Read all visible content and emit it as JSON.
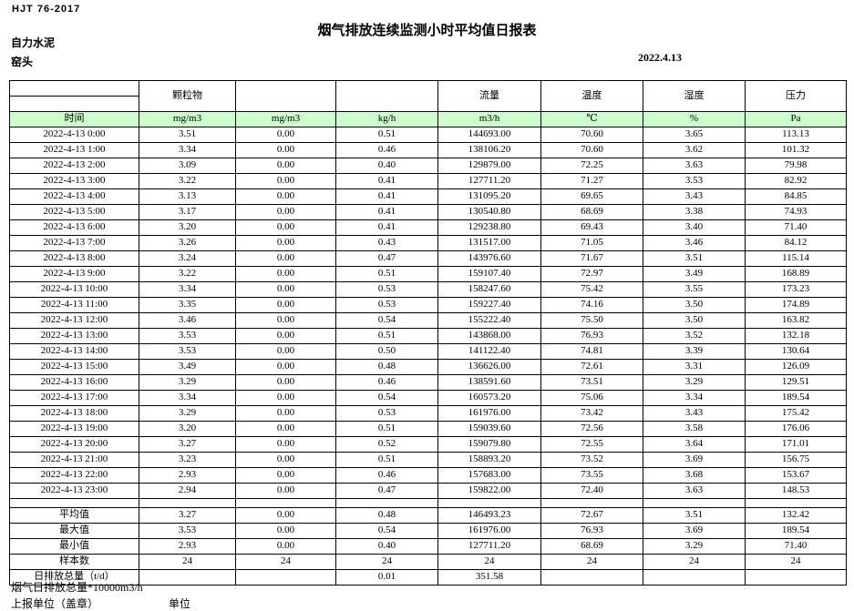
{
  "header": {
    "standard_code": "HJT 76-2017",
    "title": "烟气排放连续监测小时平均值日报表",
    "company": "自力水泥",
    "monitor_point": "窑头",
    "date": "2022.4.13"
  },
  "table": {
    "param_headers": [
      "",
      "颗粒物",
      "",
      "",
      "流量",
      "温度",
      "湿度",
      "压力"
    ],
    "unit_row": [
      "时间",
      "mg/m3",
      "mg/m3",
      "kg/h",
      "m3/h",
      "℃",
      "%",
      "Pa"
    ],
    "rows": [
      [
        "2022-4-13 0:00",
        "3.51",
        "0.00",
        "0.51",
        "144693.00",
        "70.60",
        "3.65",
        "113.13"
      ],
      [
        "2022-4-13 1:00",
        "3.34",
        "0.00",
        "0.46",
        "138106.20",
        "70.60",
        "3.62",
        "101.32"
      ],
      [
        "2022-4-13 2:00",
        "3.09",
        "0.00",
        "0.40",
        "129879.00",
        "72.25",
        "3.63",
        "79.98"
      ],
      [
        "2022-4-13 3:00",
        "3.22",
        "0.00",
        "0.41",
        "127711.20",
        "71.27",
        "3.53",
        "82.92"
      ],
      [
        "2022-4-13 4:00",
        "3.13",
        "0.00",
        "0.41",
        "131095.20",
        "69.65",
        "3.43",
        "84.85"
      ],
      [
        "2022-4-13 5:00",
        "3.17",
        "0.00",
        "0.41",
        "130540.80",
        "68.69",
        "3.38",
        "74.93"
      ],
      [
        "2022-4-13 6:00",
        "3.20",
        "0.00",
        "0.41",
        "129238.80",
        "69.43",
        "3.40",
        "71.40"
      ],
      [
        "2022-4-13 7:00",
        "3.26",
        "0.00",
        "0.43",
        "131517.00",
        "71.05",
        "3.46",
        "84.12"
      ],
      [
        "2022-4-13 8:00",
        "3.24",
        "0.00",
        "0.47",
        "143976.60",
        "71.67",
        "3.51",
        "115.14"
      ],
      [
        "2022-4-13 9:00",
        "3.22",
        "0.00",
        "0.51",
        "159107.40",
        "72.97",
        "3.49",
        "168.89"
      ],
      [
        "2022-4-13 10:00",
        "3.34",
        "0.00",
        "0.53",
        "158247.60",
        "75.42",
        "3.55",
        "173.23"
      ],
      [
        "2022-4-13 11:00",
        "3.35",
        "0.00",
        "0.53",
        "159227.40",
        "74.16",
        "3.50",
        "174.89"
      ],
      [
        "2022-4-13 12:00",
        "3.46",
        "0.00",
        "0.54",
        "155222.40",
        "75.50",
        "3.50",
        "163.82"
      ],
      [
        "2022-4-13 13:00",
        "3.53",
        "0.00",
        "0.51",
        "143868.00",
        "76.93",
        "3.52",
        "132.18"
      ],
      [
        "2022-4-13 14:00",
        "3.53",
        "0.00",
        "0.50",
        "141122.40",
        "74.81",
        "3.39",
        "130.64"
      ],
      [
        "2022-4-13 15:00",
        "3.49",
        "0.00",
        "0.48",
        "136626.00",
        "72.61",
        "3.31",
        "126.09"
      ],
      [
        "2022-4-13 16:00",
        "3.29",
        "0.00",
        "0.46",
        "138591.60",
        "73.51",
        "3.29",
        "129.51"
      ],
      [
        "2022-4-13 17:00",
        "3.34",
        "0.00",
        "0.54",
        "160573.20",
        "75.06",
        "3.34",
        "189.54"
      ],
      [
        "2022-4-13 18:00",
        "3.29",
        "0.00",
        "0.53",
        "161976.00",
        "73.42",
        "3.43",
        "175.42"
      ],
      [
        "2022-4-13 19:00",
        "3.20",
        "0.00",
        "0.51",
        "159039.60",
        "72.56",
        "3.58",
        "176.06"
      ],
      [
        "2022-4-13 20:00",
        "3.27",
        "0.00",
        "0.52",
        "159079.80",
        "72.55",
        "3.64",
        "171.01"
      ],
      [
        "2022-4-13 21:00",
        "3.23",
        "0.00",
        "0.51",
        "158893.20",
        "73.52",
        "3.69",
        "156.75"
      ],
      [
        "2022-4-13 22:00",
        "2.93",
        "0.00",
        "0.46",
        "157683.00",
        "73.55",
        "3.68",
        "153.67"
      ],
      [
        "2022-4-13 23:00",
        "2.94",
        "0.00",
        "0.47",
        "159822.00",
        "72.40",
        "3.63",
        "148.53"
      ]
    ],
    "summary_rows": [
      [
        "平均值",
        "3.27",
        "0.00",
        "0.48",
        "146493.23",
        "72.67",
        "3.51",
        "132.42"
      ],
      [
        "最大值",
        "3.53",
        "0.00",
        "0.54",
        "161976.00",
        "76.93",
        "3.69",
        "189.54"
      ],
      [
        "最小值",
        "2.93",
        "0.00",
        "0.40",
        "127711.20",
        "68.69",
        "3.29",
        "71.40"
      ],
      [
        "样本数",
        "24",
        "24",
        "24",
        "24",
        "24",
        "24",
        "24"
      ],
      [
        "日排放总量（t/d）",
        "",
        "",
        "0.01",
        "351.58",
        "",
        "",
        ""
      ]
    ]
  },
  "footer": {
    "note": "烟气日排放总量*10000m3/h",
    "report_unit_label": "上报单位（盖章）",
    "unit_label": "单位"
  },
  "colors": {
    "unit_row_bg": "#ccffcc",
    "border": "#000000"
  }
}
